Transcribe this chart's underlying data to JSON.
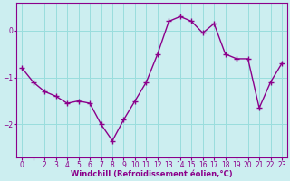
{
  "x": [
    0,
    1,
    2,
    3,
    4,
    5,
    6,
    7,
    8,
    9,
    10,
    11,
    12,
    13,
    14,
    15,
    16,
    17,
    18,
    19,
    20,
    21,
    22,
    23
  ],
  "y": [
    -0.8,
    -1.1,
    -1.3,
    -1.4,
    -1.55,
    -1.5,
    -1.55,
    -2.0,
    -2.35,
    -1.9,
    -1.5,
    -1.1,
    -0.5,
    0.2,
    0.3,
    0.2,
    -0.05,
    0.15,
    -0.5,
    -0.6,
    -0.6,
    -1.65,
    -1.1,
    -0.7
  ],
  "line_color": "#8B008B",
  "marker": "+",
  "marker_size": 5,
  "bg_color": "#cceef0",
  "grid_color": "#99dddd",
  "xlabel": "Windchill (Refroidissement éolien,°C)",
  "xlabel_color": "#8B008B",
  "tick_color": "#8B008B",
  "ylim": [
    -2.7,
    0.6
  ],
  "yticks": [
    -2,
    -1,
    0
  ],
  "xlim": [
    -0.5,
    23.5
  ],
  "xtick_labels": [
    "0",
    "",
    "2",
    "3",
    "4",
    "5",
    "6",
    "7",
    "8",
    "9",
    "10",
    "11",
    "12",
    "13",
    "14",
    "15",
    "16",
    "17",
    "18",
    "19",
    "20",
    "21",
    "22",
    "23"
  ],
  "xticks": [
    0,
    1,
    2,
    3,
    4,
    5,
    6,
    7,
    8,
    9,
    10,
    11,
    12,
    13,
    14,
    15,
    16,
    17,
    18,
    19,
    20,
    21,
    22,
    23
  ]
}
